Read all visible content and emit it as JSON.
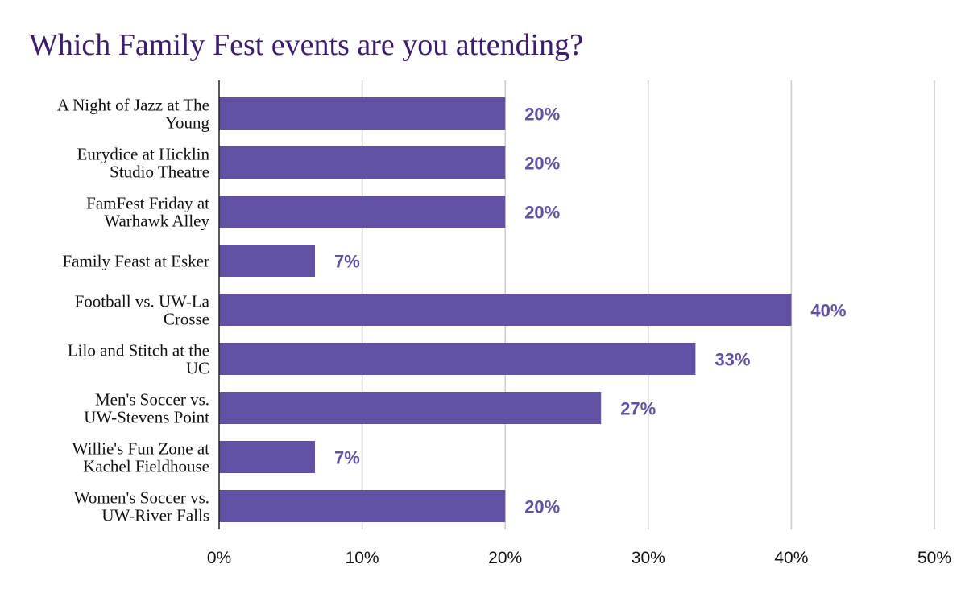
{
  "chart_data": {
    "type": "bar",
    "orientation": "horizontal",
    "title": "Which Family Fest events are you attending?",
    "categories": [
      [
        "A Night of Jazz at The",
        "Young"
      ],
      [
        "Eurydice at Hicklin",
        "Studio Theatre"
      ],
      [
        "FamFest Friday at",
        "Warhawk Alley"
      ],
      [
        "Family Feast at Esker"
      ],
      [
        "Football vs. UW-La",
        "Crosse"
      ],
      [
        "Lilo and Stitch at the",
        "UC"
      ],
      [
        "Men's Soccer vs.",
        "UW-Stevens Point"
      ],
      [
        "Willie's Fun Zone at",
        "Kachel Fieldhouse"
      ],
      [
        "Women's Soccer vs.",
        "UW-River Falls"
      ]
    ],
    "values": [
      20,
      20,
      20,
      6.7,
      40,
      33.3,
      26.7,
      6.7,
      20
    ],
    "data_labels": [
      "20%",
      "20%",
      "20%",
      "7%",
      "40%",
      "33%",
      "27%",
      "7%",
      "20%"
    ],
    "xlim": [
      0,
      50
    ],
    "xticks": [
      0,
      10,
      20,
      30,
      40,
      50
    ],
    "xtick_labels": [
      "0%",
      "10%",
      "20%",
      "30%",
      "40%",
      "50%"
    ],
    "xlabel": "",
    "ylabel": "",
    "grid": "vertical",
    "legend": "none",
    "colors": {
      "bar": "#6251a3",
      "data_label": "#6251a3",
      "title": "#3b1d6e",
      "grid": "#cccccc",
      "axis": "#222222"
    }
  }
}
